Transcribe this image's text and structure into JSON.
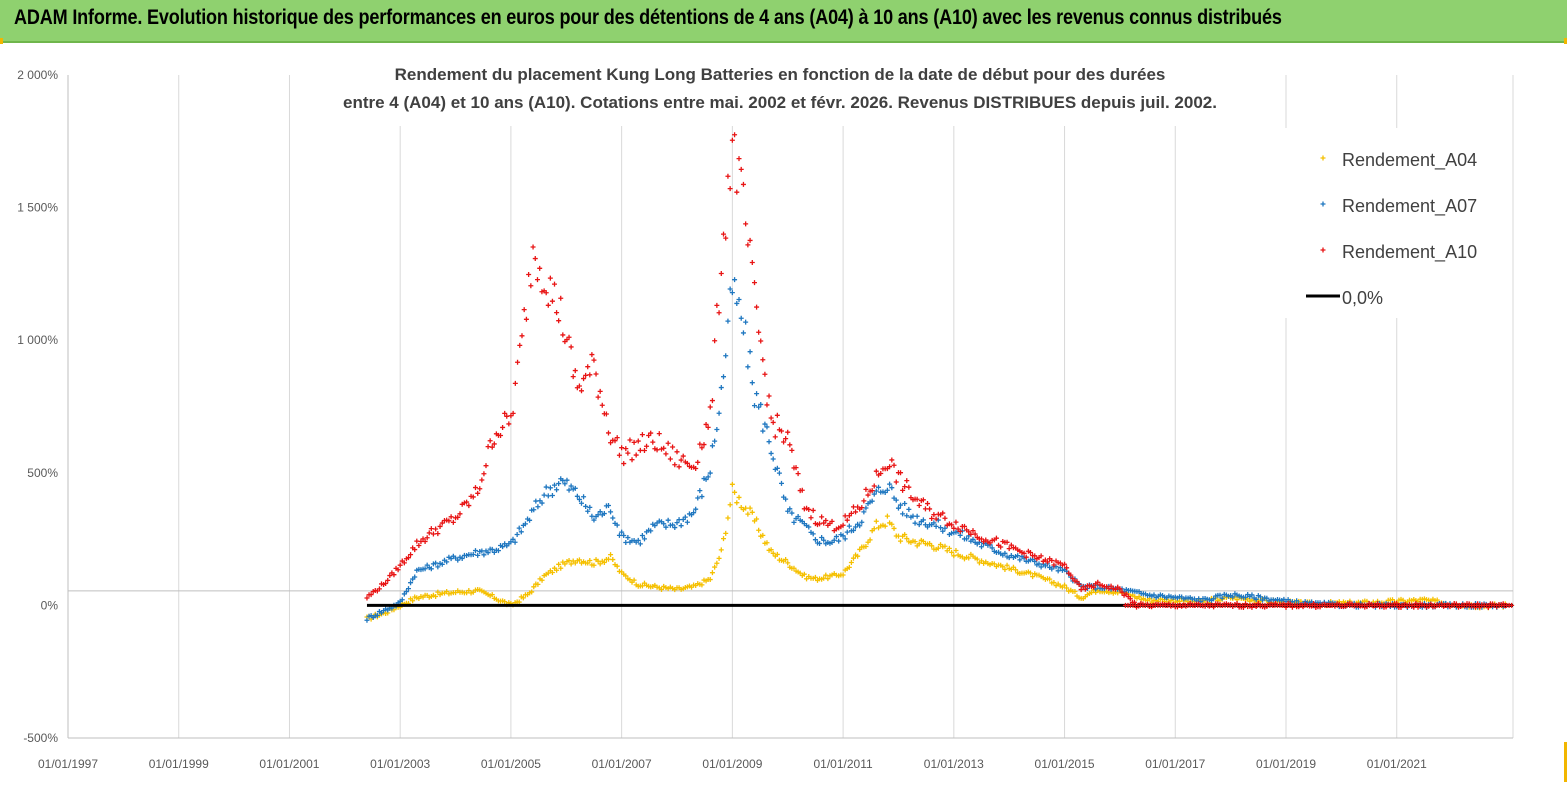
{
  "banner": {
    "title": "ADAM Informe. Evolution historique des performances en euros pour des détentions de 4 ans (A04) à 10 ans (A10) avec les revenus connus distribués"
  },
  "chart_data": {
    "type": "scatter",
    "title_line1": "Rendement du placement Kung Long Batteries  en fonction de la date de début pour des durées",
    "title_line2": "entre 4 (A04) et 10 ans (A10).  Cotations entre mai. 2002 et févr. 2026. Revenus DISTRIBUES depuis juil. 2002.",
    "y_ticks": [
      "2 000%",
      "1 500%",
      "1 000%",
      "500%",
      "0%",
      "-500%"
    ],
    "y_tick_values": [
      2000,
      1500,
      1000,
      500,
      0,
      -500
    ],
    "ylim": [
      -500,
      2000
    ],
    "x_ticks": [
      "01/01/1997",
      "01/01/1999",
      "01/01/2001",
      "01/01/2003",
      "01/01/2005",
      "01/01/2007",
      "01/01/2009",
      "01/01/2011",
      "01/01/2013",
      "01/01/2015",
      "01/01/2017",
      "01/01/2019",
      "01/01/2021"
    ],
    "x_tick_years": [
      1997,
      1999,
      2001,
      2003,
      2005,
      2007,
      2009,
      2011,
      2013,
      2015,
      2017,
      2019,
      2021
    ],
    "xlim": [
      1997,
      2023.1
    ],
    "grid": "vertical",
    "legend_position": "right",
    "colors": {
      "A04": "#f5c000",
      "A07": "#1f77c0",
      "A10": "#e81414",
      "zero": "#000000"
    },
    "series": [
      {
        "name": "Rendement_A04",
        "key": "A04",
        "x": [
          2002.4,
          2002.7,
          2003.0,
          2003.3,
          2003.6,
          2004.0,
          2004.4,
          2004.7,
          2005.0,
          2005.3,
          2005.6,
          2005.9,
          2006.2,
          2006.5,
          2006.8,
          2007.0,
          2007.3,
          2007.6,
          2008.0,
          2008.3,
          2008.6,
          2008.8,
          2009.0,
          2009.2,
          2009.4,
          2009.7,
          2010.0,
          2010.3,
          2010.5,
          2010.8,
          2011.0,
          2011.3,
          2011.6,
          2011.8,
          2012.0,
          2012.3,
          2012.6,
          2013.0,
          2013.5,
          2014.0,
          2014.5,
          2015.0,
          2015.3,
          2015.6,
          2016.0,
          2016.5,
          2017.0,
          2017.5,
          2018.0,
          2018.5,
          2019.0,
          2019.5,
          2020.0,
          2020.5,
          2021.0,
          2021.5,
          2022.0,
          2022.5,
          2023.0
        ],
        "y": [
          -50,
          -30,
          0,
          30,
          40,
          50,
          55,
          30,
          0,
          40,
          110,
          150,
          175,
          160,
          180,
          120,
          80,
          70,
          60,
          70,
          100,
          200,
          430,
          380,
          320,
          200,
          160,
          110,
          100,
          110,
          120,
          200,
          300,
          320,
          260,
          240,
          230,
          200,
          170,
          140,
          110,
          70,
          30,
          60,
          50,
          20,
          20,
          15,
          30,
          20,
          10,
          5,
          8,
          10,
          15,
          20,
          5,
          -2,
          0
        ]
      },
      {
        "name": "Rendement_A07",
        "key": "A07",
        "x": [
          2002.4,
          2002.7,
          2003.0,
          2003.3,
          2003.6,
          2004.0,
          2004.4,
          2004.7,
          2005.0,
          2005.3,
          2005.6,
          2005.9,
          2006.2,
          2006.5,
          2006.8,
          2007.0,
          2007.3,
          2007.6,
          2008.0,
          2008.3,
          2008.6,
          2008.8,
          2009.0,
          2009.2,
          2009.4,
          2009.7,
          2010.0,
          2010.3,
          2010.5,
          2010.8,
          2011.0,
          2011.3,
          2011.6,
          2011.8,
          2012.0,
          2012.3,
          2012.6,
          2013.0,
          2013.5,
          2014.0,
          2014.5,
          2015.0,
          2015.3,
          2015.6,
          2016.0,
          2016.5,
          2017.0,
          2017.5,
          2018.0,
          2018.5,
          2019.0,
          2019.5,
          2020.0,
          2020.5,
          2021.0,
          2021.5,
          2022.0,
          2022.5,
          2023.0
        ],
        "y": [
          -50,
          -20,
          10,
          130,
          150,
          180,
          200,
          210,
          230,
          320,
          420,
          470,
          420,
          330,
          370,
          260,
          240,
          300,
          310,
          350,
          520,
          800,
          1200,
          1050,
          800,
          600,
          350,
          300,
          250,
          240,
          260,
          320,
          420,
          460,
          380,
          330,
          310,
          280,
          230,
          190,
          160,
          130,
          70,
          70,
          60,
          40,
          30,
          20,
          40,
          30,
          15,
          5,
          2,
          0,
          0,
          0,
          0,
          0,
          0
        ]
      },
      {
        "name": "Rendement_A10",
        "key": "A10",
        "x": [
          2002.4,
          2002.7,
          2003.0,
          2003.3,
          2003.6,
          2004.0,
          2004.4,
          2004.7,
          2005.0,
          2005.2,
          2005.4,
          2005.6,
          2005.9,
          2006.2,
          2006.5,
          2006.8,
          2007.0,
          2007.3,
          2007.6,
          2008.0,
          2008.3,
          2008.6,
          2008.8,
          2009.0,
          2009.2,
          2009.4,
          2009.7,
          2010.0,
          2010.3,
          2010.5,
          2010.8,
          2011.0,
          2011.3,
          2011.6,
          2011.8,
          2012.0,
          2012.3,
          2012.6,
          2013.0,
          2013.5,
          2014.0,
          2014.5,
          2015.0,
          2015.3,
          2015.6,
          2016.0,
          2016.3,
          2017.0,
          2018.0,
          2019.0,
          2020.0,
          2021.0,
          2022.0,
          2023.0
        ],
        "y": [
          30,
          80,
          150,
          230,
          280,
          330,
          430,
          650,
          700,
          1000,
          1350,
          1250,
          1100,
          820,
          900,
          650,
          570,
          600,
          620,
          550,
          530,
          700,
          1300,
          1750,
          1500,
          1150,
          700,
          620,
          380,
          330,
          300,
          310,
          370,
          480,
          550,
          480,
          400,
          350,
          310,
          260,
          220,
          180,
          150,
          60,
          80,
          60,
          0,
          0,
          0,
          0,
          0,
          0,
          0,
          0
        ]
      },
      {
        "name": "0,0%",
        "key": "zero",
        "x": [
          2002.4,
          2023.1
        ],
        "y": [
          0,
          0
        ]
      }
    ]
  }
}
